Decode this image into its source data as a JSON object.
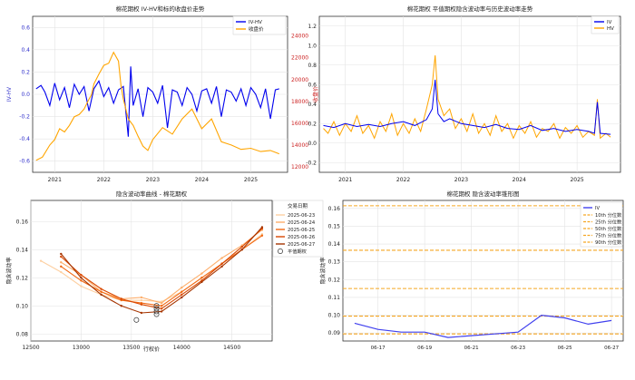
{
  "chart_data": [
    {
      "type": "line",
      "title": "棉花期权 IV-HV和标的收盘价走势",
      "xlabel": "",
      "ylabel": "IV-HV",
      "y2label": "收盘价",
      "ylim": [
        -0.7,
        0.7
      ],
      "y2lim": [
        11500,
        25800
      ],
      "xlim": [
        2020.55,
        2025.75
      ],
      "xticks": [
        "2021",
        "2022",
        "2023",
        "2024",
        "2025"
      ],
      "yticks": [
        "-0.6",
        "-0.4",
        "-0.2",
        "0.0",
        "0.2",
        "0.4",
        "0.6"
      ],
      "y2ticks": [
        "12000",
        "14000",
        "16000",
        "18000",
        "20000",
        "22000",
        "24000"
      ],
      "grid": true,
      "legend_position": "top-right",
      "series": [
        {
          "name": "IV-HV",
          "color": "#0000ee",
          "axis": "left",
          "x": [
            2020.62,
            2020.72,
            2020.8,
            2020.9,
            2021.0,
            2021.1,
            2021.2,
            2021.3,
            2021.4,
            2021.5,
            2021.6,
            2021.7,
            2021.8,
            2021.9,
            2022.0,
            2022.1,
            2022.2,
            2022.3,
            2022.4,
            2022.5,
            2022.55,
            2022.6,
            2022.7,
            2022.8,
            2022.9,
            2023.0,
            2023.1,
            2023.2,
            2023.3,
            2023.4,
            2023.5,
            2023.6,
            2023.7,
            2023.8,
            2023.9,
            2024.0,
            2024.1,
            2024.2,
            2024.3,
            2024.4,
            2024.5,
            2024.6,
            2024.7,
            2024.8,
            2024.9,
            2025.0,
            2025.1,
            2025.2,
            2025.3,
            2025.4,
            2025.5,
            2025.58
          ],
          "values": [
            0.05,
            0.08,
            0.02,
            -0.1,
            0.1,
            -0.05,
            0.06,
            -0.12,
            0.09,
            0.0,
            0.07,
            -0.15,
            0.05,
            0.12,
            -0.02,
            0.06,
            -0.08,
            0.04,
            0.07,
            -0.38,
            0.25,
            -0.1,
            0.05,
            -0.2,
            0.06,
            0.02,
            -0.08,
            0.08,
            -0.3,
            0.04,
            0.02,
            -0.1,
            0.06,
            0.0,
            -0.15,
            0.03,
            0.05,
            -0.08,
            0.07,
            -0.2,
            0.04,
            0.02,
            -0.06,
            0.05,
            -0.1,
            0.06,
            0.0,
            -0.12,
            0.05,
            -0.22,
            0.04,
            0.05
          ]
        },
        {
          "name": "收盘价",
          "color": "#ffa500",
          "axis": "right",
          "x": [
            2020.62,
            2020.75,
            2020.9,
            2021.0,
            2021.1,
            2021.2,
            2021.3,
            2021.4,
            2021.5,
            2021.6,
            2021.7,
            2021.75,
            2021.8,
            2021.9,
            2022.0,
            2022.1,
            2022.2,
            2022.3,
            2022.35,
            2022.4,
            2022.5,
            2022.6,
            2022.7,
            2022.8,
            2022.9,
            2023.0,
            2023.2,
            2023.4,
            2023.6,
            2023.8,
            2024.0,
            2024.2,
            2024.4,
            2024.6,
            2024.8,
            2025.0,
            2025.2,
            2025.4,
            2025.58
          ],
          "values": [
            12600,
            12900,
            14000,
            14500,
            15500,
            15200,
            15800,
            16600,
            16800,
            17300,
            18200,
            18600,
            19600,
            20500,
            21300,
            21500,
            22500,
            21700,
            19500,
            18200,
            16400,
            15800,
            14800,
            13900,
            13500,
            14500,
            15600,
            15000,
            16400,
            17300,
            15500,
            16400,
            14300,
            14000,
            13600,
            13700,
            13400,
            13500,
            13200
          ]
        }
      ]
    },
    {
      "type": "line",
      "title": "棉花期权 平值期权隐含波动率与历史波动率走势",
      "xlabel": "",
      "ylabel": "",
      "ylim": [
        -0.3,
        1.3
      ],
      "xlim": [
        2020.55,
        2025.75
      ],
      "xticks": [
        "2021",
        "2022",
        "2023",
        "2024",
        "2025"
      ],
      "yticks": [
        "-0.2",
        "0.0",
        "0.2",
        "0.4",
        "0.6",
        "0.8",
        "1.0",
        "1.2"
      ],
      "grid": true,
      "legend_position": "top-right",
      "series": [
        {
          "name": "IV",
          "color": "#0000ee",
          "x": [
            2020.62,
            2020.8,
            2021.0,
            2021.2,
            2021.4,
            2021.6,
            2021.8,
            2022.0,
            2022.2,
            2022.4,
            2022.5,
            2022.55,
            2022.6,
            2022.7,
            2022.8,
            2023.0,
            2023.2,
            2023.4,
            2023.6,
            2023.8,
            2024.0,
            2024.2,
            2024.4,
            2024.6,
            2024.8,
            2025.0,
            2025.2,
            2025.3,
            2025.35,
            2025.4,
            2025.58
          ],
          "values": [
            0.18,
            0.16,
            0.2,
            0.17,
            0.19,
            0.17,
            0.2,
            0.22,
            0.18,
            0.24,
            0.35,
            0.65,
            0.3,
            0.22,
            0.25,
            0.2,
            0.18,
            0.16,
            0.19,
            0.15,
            0.14,
            0.18,
            0.13,
            0.15,
            0.12,
            0.14,
            0.12,
            0.1,
            0.42,
            0.1,
            0.09
          ]
        },
        {
          "name": "HV",
          "color": "#ffa500",
          "x": [
            2020.62,
            2020.7,
            2020.8,
            2020.9,
            2021.0,
            2021.1,
            2021.2,
            2021.3,
            2021.4,
            2021.5,
            2021.6,
            2021.7,
            2021.8,
            2021.9,
            2022.0,
            2022.1,
            2022.2,
            2022.3,
            2022.4,
            2022.5,
            2022.55,
            2022.6,
            2022.7,
            2022.8,
            2022.9,
            2023.0,
            2023.1,
            2023.2,
            2023.3,
            2023.4,
            2023.5,
            2023.6,
            2023.7,
            2023.8,
            2023.9,
            2024.0,
            2024.1,
            2024.2,
            2024.3,
            2024.4,
            2024.5,
            2024.6,
            2024.7,
            2024.8,
            2024.9,
            2025.0,
            2025.1,
            2025.2,
            2025.3,
            2025.35,
            2025.4,
            2025.5,
            2025.58
          ],
          "values": [
            0.15,
            0.1,
            0.22,
            0.08,
            0.2,
            0.12,
            0.28,
            0.1,
            0.18,
            0.05,
            0.22,
            0.12,
            0.3,
            0.08,
            0.2,
            0.1,
            0.25,
            0.12,
            0.35,
            0.6,
            0.9,
            0.45,
            0.28,
            0.35,
            0.15,
            0.25,
            0.12,
            0.3,
            0.1,
            0.2,
            0.08,
            0.28,
            0.12,
            0.2,
            0.05,
            0.18,
            0.1,
            0.22,
            0.06,
            0.15,
            0.12,
            0.2,
            0.05,
            0.16,
            0.1,
            0.18,
            0.06,
            0.12,
            0.08,
            0.45,
            0.05,
            0.1,
            0.06
          ]
        }
      ]
    },
    {
      "type": "line",
      "title": "隐含波动率曲线 - 棉花期权",
      "xlabel": "行权价",
      "ylabel": "隐含波动率",
      "xlim": [
        12500,
        14900
      ],
      "ylim": [
        0.075,
        0.175
      ],
      "xticks": [
        "12500",
        "13000",
        "13500",
        "14000",
        "14500"
      ],
      "yticks": [
        "0.08",
        "0.10",
        "0.12",
        "0.14",
        "0.16"
      ],
      "grid": true,
      "legend_title": "交易日期",
      "legend_position": "top-right",
      "atm_label": "平值期权",
      "atm_point": {
        "x": 13550,
        "y": 0.09
      },
      "atm_cluster": {
        "x": 13750,
        "values": [
          0.094,
          0.096,
          0.098,
          0.1
        ]
      },
      "series": [
        {
          "name": "2025-06-23",
          "color": "#fdd0a2",
          "x": [
            12600,
            12800,
            13000,
            13200,
            13400,
            13600,
            13800,
            14000,
            14200,
            14400,
            14600,
            14800
          ],
          "values": [
            0.132,
            0.124,
            0.114,
            0.108,
            0.104,
            0.104,
            0.103,
            0.11,
            0.12,
            0.13,
            0.14,
            0.151
          ]
        },
        {
          "name": "2025-06-24",
          "color": "#fdae6b",
          "x": [
            12800,
            13000,
            13200,
            13400,
            13600,
            13800,
            14000,
            14200,
            14400,
            14600,
            14800
          ],
          "values": [
            0.131,
            0.122,
            0.11,
            0.105,
            0.106,
            0.102,
            0.113,
            0.123,
            0.134,
            0.143,
            0.154
          ]
        },
        {
          "name": "2025-06-25",
          "color": "#f16913",
          "x": [
            12800,
            13000,
            13200,
            13400,
            13600,
            13800,
            14000,
            14200,
            14400,
            14600,
            14800
          ],
          "values": [
            0.128,
            0.118,
            0.11,
            0.104,
            0.102,
            0.1,
            0.11,
            0.12,
            0.13,
            0.14,
            0.15
          ]
        },
        {
          "name": "2025-06-26",
          "color": "#d94801",
          "x": [
            12800,
            13000,
            13200,
            13400,
            13600,
            13800,
            14000,
            14200,
            14400,
            14600,
            14800
          ],
          "values": [
            0.135,
            0.122,
            0.112,
            0.105,
            0.101,
            0.098,
            0.108,
            0.118,
            0.13,
            0.142,
            0.155
          ]
        },
        {
          "name": "2025-06-27",
          "color": "#a63603",
          "x": [
            12800,
            13000,
            13200,
            13400,
            13600,
            13800,
            14000,
            14200,
            14400,
            14600,
            14800
          ],
          "values": [
            0.137,
            0.12,
            0.108,
            0.1,
            0.095,
            0.096,
            0.106,
            0.117,
            0.128,
            0.14,
            0.156
          ]
        }
      ]
    },
    {
      "type": "line",
      "title": "棉花期权 隐含波动率锥形图",
      "xlabel": "",
      "ylabel": "隐含波动率",
      "ylim": [
        0.0855,
        0.1645
      ],
      "xticks": [
        "06-17",
        "06-19",
        "06-21",
        "06-23",
        "06-25",
        "06-27"
      ],
      "yticks": [
        "0.09",
        "0.10",
        "0.11",
        "0.12",
        "0.13",
        "0.14",
        "0.15",
        "0.16"
      ],
      "grid": true,
      "legend_position": "top-right",
      "x": [
        "06-16",
        "06-17",
        "06-18",
        "06-19",
        "06-20",
        "06-21",
        "06-22",
        "06-23",
        "06-24",
        "06-25",
        "06-26",
        "06-27"
      ],
      "series": [
        {
          "name": "IV",
          "color": "#4040ee",
          "values": [
            0.0955,
            0.092,
            0.0905,
            0.0905,
            0.0875,
            0.0885,
            0.0895,
            0.0905,
            0.1,
            0.0985,
            0.095,
            0.097
          ]
        }
      ],
      "percentiles": [
        {
          "name": "10th 分位数",
          "value": 0.0895
        },
        {
          "name": "25th 分位数",
          "value": 0.0995
        },
        {
          "name": "50th 分位数",
          "value": 0.115
        },
        {
          "name": "75th 分位数",
          "value": 0.1365
        },
        {
          "name": "90th 分位数",
          "value": 0.1615
        }
      ]
    }
  ]
}
